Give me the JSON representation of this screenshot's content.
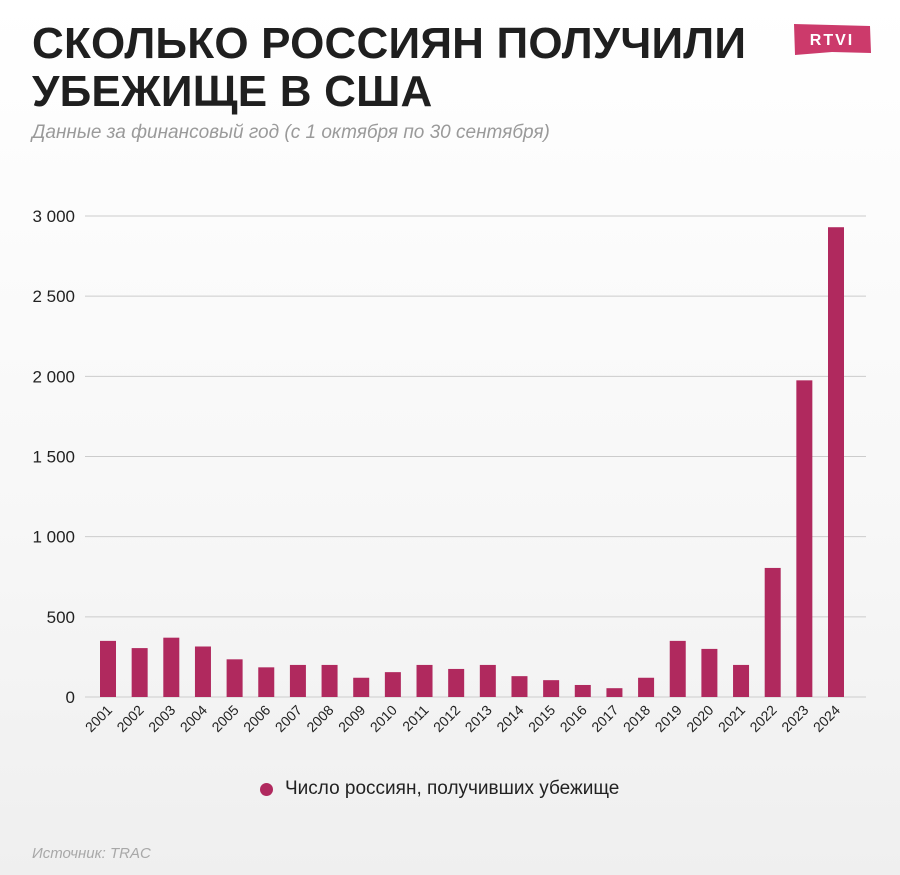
{
  "header": {
    "title": "СКОЛЬКО РОССИЯН ПОЛУЧИЛИ УБЕЖИЩЕ В США",
    "subtitle": "Данные за финансовый год (с 1 октября по 30 сентября)"
  },
  "logo": {
    "text": "RTVI",
    "color": "#cc3a6b"
  },
  "colors": {
    "bar": "#b0295e",
    "grid": "#cccccc",
    "axis_text": "#222222"
  },
  "chart_data": {
    "type": "bar",
    "title": "СКОЛЬКО РОССИЯН ПОЛУЧИЛИ УБЕЖИЩЕ В США",
    "subtitle": "Данные за финансовый год (с 1 октября по 30 сентября)",
    "xlabel": "",
    "ylabel": "",
    "ylim": [
      0,
      3000
    ],
    "yticks": [
      0,
      500,
      1000,
      1500,
      2000,
      2500,
      3000
    ],
    "ytick_labels": [
      "0",
      "500",
      "1 000",
      "1 500",
      "2 000",
      "2 500",
      "3 000"
    ],
    "grid": true,
    "legend_position": "bottom-center",
    "categories": [
      "2001",
      "2002",
      "2003",
      "2004",
      "2005",
      "2006",
      "2007",
      "2008",
      "2009",
      "2010",
      "2011",
      "2012",
      "2013",
      "2014",
      "2015",
      "2016",
      "2017",
      "2018",
      "2019",
      "2020",
      "2021",
      "2022",
      "2023",
      "2024"
    ],
    "series": [
      {
        "name": "Число россиян, получивших убежище",
        "values": [
          350,
          305,
          370,
          315,
          235,
          185,
          200,
          200,
          120,
          155,
          200,
          175,
          200,
          130,
          105,
          75,
          55,
          120,
          350,
          300,
          200,
          805,
          1975,
          2930
        ]
      }
    ]
  },
  "legend": {
    "label": "Число россиян, получивших убежище"
  },
  "footer": {
    "source": "Источник: TRAC"
  }
}
